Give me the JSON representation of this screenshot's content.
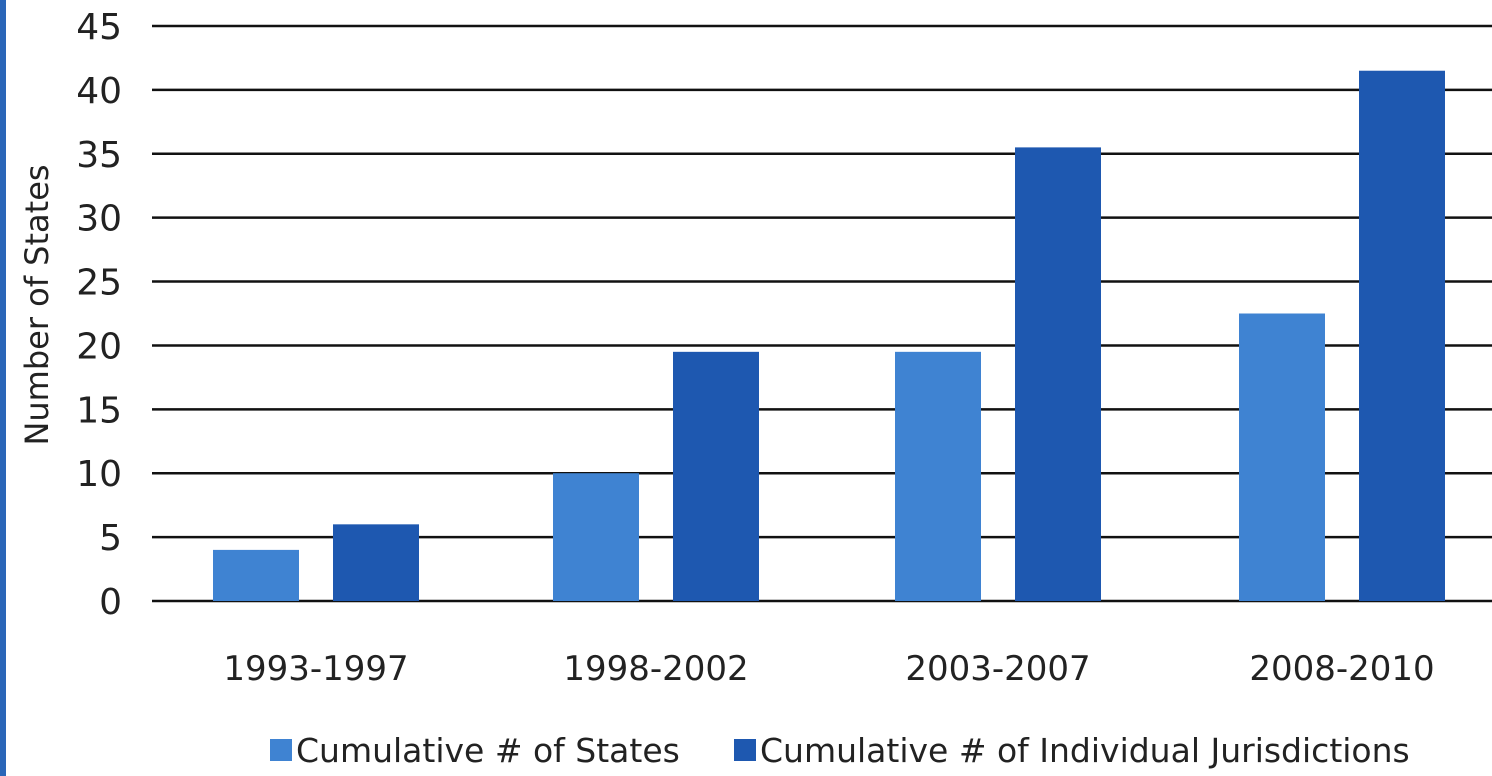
{
  "chart_data": {
    "type": "bar",
    "title": "",
    "xlabel": "",
    "ylabel": "Number of States",
    "ylim": [
      0,
      45
    ],
    "yticks": [
      0,
      5,
      10,
      15,
      20,
      25,
      30,
      35,
      40,
      45
    ],
    "grid": true,
    "legend_position": "bottom",
    "categories": [
      "1993-1997",
      "1998-2002",
      "2003-2007",
      "2008-2010"
    ],
    "series": [
      {
        "name": "Cumulative # of States",
        "color": "#3f83d2",
        "values": [
          4,
          10,
          19.5,
          22.5
        ]
      },
      {
        "name": "Cumulative # of Individual Jurisdictions",
        "color": "#1e58b0",
        "values": [
          6,
          19.5,
          35.5,
          41.5
        ]
      }
    ]
  },
  "colors": {
    "left_strip": "#2a66b8"
  }
}
